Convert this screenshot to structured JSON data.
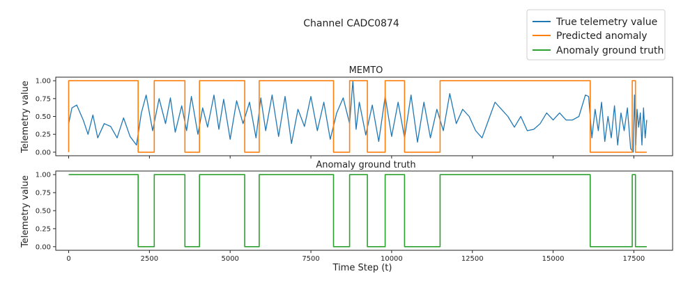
{
  "chart_data": {
    "title": "Channel CADC0874",
    "xlabel": "Time Step (t)",
    "legend": {
      "placement": "top-right",
      "entries": [
        "True telemetry value",
        "Predicted anomaly",
        "Anomaly ground truth"
      ]
    },
    "colors": {
      "telemetry": "#1f77b4",
      "predicted": "#ff7f0e",
      "ground_truth": "#2ca02c"
    },
    "xlim": [
      -400,
      18700
    ],
    "x_ticks": [
      0,
      2500,
      5000,
      7500,
      10000,
      12500,
      15000,
      17500
    ],
    "x_tick_labels": [
      "0",
      "2500",
      "5000",
      "7500",
      "10000",
      "12500",
      "15000",
      "17500"
    ],
    "panels": [
      {
        "type": "line",
        "title": "MEMTO",
        "ylabel": "Telemetry value",
        "ylim": [
          -0.05,
          1.05
        ],
        "y_ticks": [
          0.0,
          0.25,
          0.5,
          0.75,
          1.0
        ],
        "y_tick_labels": [
          "0.00",
          "0.25",
          "0.50",
          "0.75",
          "1.00"
        ],
        "series": [
          {
            "name": "True telemetry value",
            "x": [
              0,
              100,
              250,
              450,
              600,
              750,
              900,
              1100,
              1300,
              1500,
              1700,
              1900,
              2100,
              2250,
              2400,
              2600,
              2800,
              3000,
              3150,
              3300,
              3500,
              3650,
              3800,
              4000,
              4150,
              4300,
              4500,
              4650,
              4800,
              5000,
              5200,
              5400,
              5600,
              5800,
              5950,
              6100,
              6300,
              6500,
              6700,
              6900,
              7100,
              7300,
              7500,
              7700,
              7900,
              8100,
              8300,
              8500,
              8700,
              8800,
              8900,
              9000,
              9200,
              9400,
              9600,
              9800,
              10000,
              10200,
              10400,
              10600,
              10800,
              11000,
              11200,
              11400,
              11600,
              11800,
              12000,
              12200,
              12400,
              12600,
              12800,
              13000,
              13200,
              13400,
              13600,
              13800,
              14000,
              14200,
              14400,
              14600,
              14800,
              15000,
              15200,
              15400,
              15600,
              15800,
              16000,
              16100,
              16200,
              16300,
              16400,
              16500,
              16600,
              16700,
              16800,
              16900,
              17000,
              17100,
              17200,
              17300,
              17400,
              17480,
              17520,
              17560,
              17600,
              17650,
              17700,
              17750,
              17800,
              17850,
              17900
            ],
            "values": [
              0.4,
              0.62,
              0.66,
              0.45,
              0.25,
              0.52,
              0.2,
              0.4,
              0.36,
              0.2,
              0.48,
              0.22,
              0.1,
              0.55,
              0.8,
              0.3,
              0.75,
              0.4,
              0.76,
              0.28,
              0.65,
              0.3,
              0.78,
              0.25,
              0.62,
              0.35,
              0.8,
              0.32,
              0.74,
              0.18,
              0.72,
              0.4,
              0.7,
              0.2,
              0.76,
              0.3,
              0.8,
              0.22,
              0.78,
              0.12,
              0.6,
              0.36,
              0.78,
              0.3,
              0.7,
              0.18,
              0.55,
              0.76,
              0.4,
              1.0,
              0.32,
              0.7,
              0.24,
              0.66,
              0.15,
              0.78,
              0.22,
              0.7,
              0.2,
              0.8,
              0.14,
              0.7,
              0.2,
              0.6,
              0.3,
              0.82,
              0.4,
              0.6,
              0.5,
              0.3,
              0.2,
              0.45,
              0.7,
              0.6,
              0.5,
              0.35,
              0.5,
              0.3,
              0.32,
              0.4,
              0.55,
              0.45,
              0.55,
              0.45,
              0.45,
              0.5,
              0.8,
              0.78,
              0.2,
              0.6,
              0.3,
              0.7,
              0.15,
              0.5,
              0.2,
              0.65,
              0.1,
              0.55,
              0.3,
              0.62,
              0.05,
              0.0,
              0.8,
              0.1,
              0.6,
              0.35,
              0.55,
              0.1,
              0.62,
              0.2,
              0.45
            ]
          },
          {
            "name": "Predicted anomaly",
            "x": [
              0,
              0,
              2150,
              2150,
              2650,
              2650,
              3600,
              3600,
              4050,
              4050,
              5450,
              5450,
              5900,
              5900,
              8200,
              8200,
              8700,
              8700,
              9250,
              9250,
              9800,
              9800,
              10400,
              10400,
              11500,
              11500,
              16150,
              16150,
              17450,
              17450,
              17550,
              17550,
              17900
            ],
            "values": [
              0,
              1,
              1,
              0,
              0,
              1,
              1,
              0,
              0,
              1,
              1,
              0,
              0,
              1,
              1,
              0,
              0,
              1,
              1,
              0,
              0,
              1,
              1,
              0,
              0,
              1,
              1,
              0,
              0,
              1,
              1,
              0,
              0
            ]
          }
        ]
      },
      {
        "type": "line",
        "title": "Anomaly ground truth",
        "ylabel": "Telemetry value",
        "ylim": [
          -0.05,
          1.05
        ],
        "y_ticks": [
          0.0,
          0.25,
          0.5,
          0.75,
          1.0
        ],
        "y_tick_labels": [
          "0.00",
          "0.25",
          "0.50",
          "0.75",
          "1.00"
        ],
        "series": [
          {
            "name": "Anomaly ground truth",
            "x": [
              0,
              2150,
              2150,
              2650,
              2650,
              3600,
              3600,
              4050,
              4050,
              5450,
              5450,
              5900,
              5900,
              8200,
              8200,
              8700,
              8700,
              9250,
              9250,
              9800,
              9800,
              10400,
              10400,
              11500,
              11500,
              16150,
              16150,
              17450,
              17450,
              17550,
              17550,
              17900
            ],
            "values": [
              1,
              1,
              0,
              0,
              1,
              1,
              0,
              0,
              1,
              1,
              0,
              0,
              1,
              1,
              0,
              0,
              1,
              1,
              0,
              0,
              1,
              1,
              0,
              0,
              1,
              1,
              0,
              0,
              1,
              1,
              0,
              0
            ]
          }
        ]
      }
    ]
  }
}
